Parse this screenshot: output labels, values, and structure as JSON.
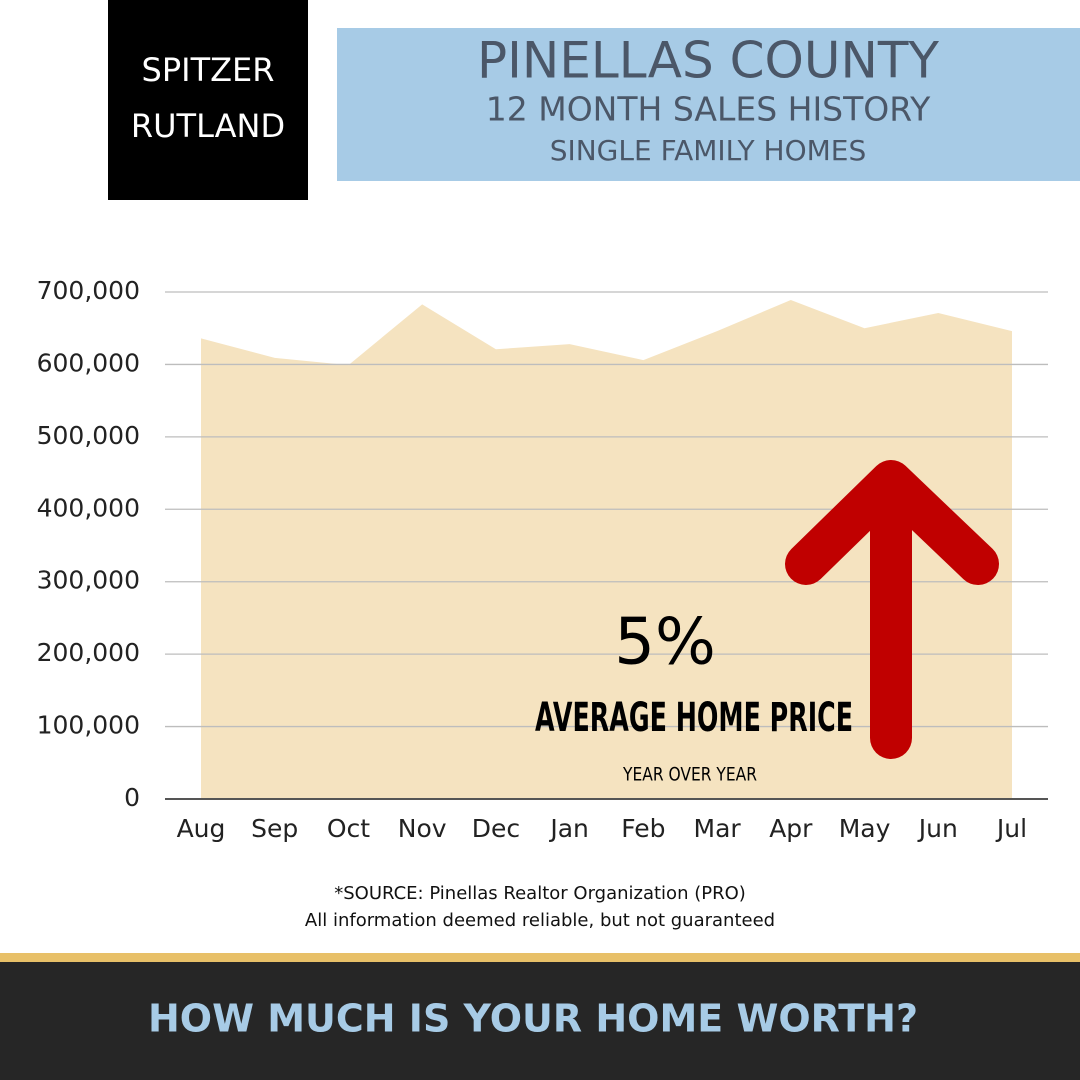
{
  "header": {
    "logo": [
      "SPITZER",
      "RUTLAND"
    ],
    "title": "PINELLAS COUNTY",
    "subtitle": "12 MONTH SALES HISTORY",
    "subtitle2": "SINGLE FAMILY HOMES"
  },
  "chart_data": {
    "type": "area",
    "categories": [
      "Aug",
      "Sep",
      "Oct",
      "Nov",
      "Dec",
      "Jan",
      "Feb",
      "Mar",
      "Apr",
      "May",
      "Jun",
      "Jul"
    ],
    "values": [
      636000,
      609000,
      599000,
      683000,
      621000,
      628000,
      606000,
      646000,
      689000,
      650000,
      671000,
      646000
    ],
    "color": "#f5e3c0",
    "ylim": [
      0,
      700000
    ],
    "yticks": [
      0,
      {
        "value": 100000,
        "label": "100,000"
      },
      {
        "value": 200000,
        "label": "200,000"
      },
      {
        "value": 300000,
        "label": "300,000"
      },
      {
        "value": 400000,
        "label": "400,000"
      },
      {
        "value": 500000,
        "label": "500,000"
      },
      {
        "value": 600000,
        "label": "600,000"
      },
      {
        "value": 700000,
        "label": "700,000"
      }
    ],
    "grid": true,
    "annotations": [
      "5%",
      "AVERAGE HOME PRICE",
      "YEAR OVER YEAR"
    ]
  },
  "source": [
    "*SOURCE: Pinellas Realtor Organization (PRO)",
    "All information deemed reliable, but not guaranteed"
  ],
  "footer": "HOW MUCH IS YOUR HOME WORTH?"
}
